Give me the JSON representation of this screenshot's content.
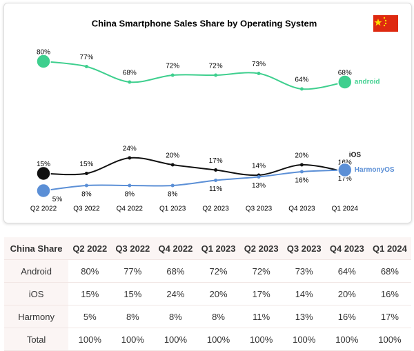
{
  "chart_data": {
    "type": "line",
    "title": "China Smartphone Sales Share by Operating System",
    "categories": [
      "Q2 2022",
      "Q3 2022",
      "Q4 2022",
      "Q1 2023",
      "Q2 2023",
      "Q3 2023",
      "Q4 2023",
      "Q1 2024"
    ],
    "ylim": [
      0,
      100
    ],
    "series": [
      {
        "name": "android",
        "color": "#3ecf8e",
        "values": [
          80,
          77,
          68,
          72,
          72,
          73,
          64,
          68
        ],
        "value_labels": [
          "80%",
          "77%",
          "68%",
          "72%",
          "72%",
          "73%",
          "64%",
          "68%"
        ]
      },
      {
        "name": "iOS",
        "color": "#111111",
        "values": [
          15,
          15,
          24,
          20,
          17,
          14,
          20,
          16
        ],
        "value_labels": [
          "15%",
          "15%",
          "24%",
          "20%",
          "17%",
          "14%",
          "20%",
          "16%"
        ]
      },
      {
        "name": "HarmonyOS",
        "color": "#5b8fd6",
        "values": [
          5,
          8,
          8,
          8,
          11,
          13,
          16,
          17
        ],
        "value_labels": [
          "5%",
          "8%",
          "8%",
          "8%",
          "11%",
          "13%",
          "16%",
          "17%"
        ]
      }
    ]
  },
  "table": {
    "header": [
      "China Share",
      "Q2 2022",
      "Q3 2022",
      "Q4 2022",
      "Q1 2023",
      "Q2 2023",
      "Q3 2023",
      "Q4 2023",
      "Q1 2024"
    ],
    "rows": [
      [
        "Android",
        "80%",
        "77%",
        "68%",
        "72%",
        "72%",
        "73%",
        "64%",
        "68%"
      ],
      [
        "iOS",
        "15%",
        "15%",
        "24%",
        "20%",
        "17%",
        "14%",
        "20%",
        "16%"
      ],
      [
        "Harmony",
        "5%",
        "8%",
        "8%",
        "8%",
        "11%",
        "13%",
        "16%",
        "17%"
      ],
      [
        "Total",
        "100%",
        "100%",
        "100%",
        "100%",
        "100%",
        "100%",
        "100%",
        "100%"
      ]
    ]
  }
}
